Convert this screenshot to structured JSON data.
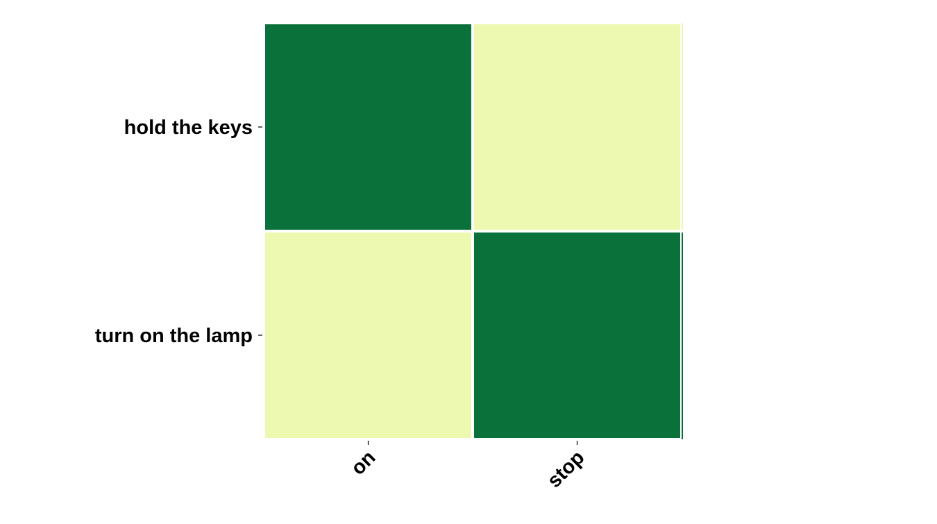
{
  "chart_data": {
    "type": "heatmap",
    "title": "",
    "xlabel": "",
    "ylabel": "",
    "x_categories": [
      "on",
      "stop"
    ],
    "y_categories": [
      "hold the keys",
      "turn on the lamp"
    ],
    "values": [
      [
        1,
        0
      ],
      [
        0,
        1
      ]
    ],
    "color_scale": {
      "low": "#edf8b1",
      "high": "#0b713b"
    },
    "grid_lines": "#ffffff",
    "legend": "none"
  }
}
